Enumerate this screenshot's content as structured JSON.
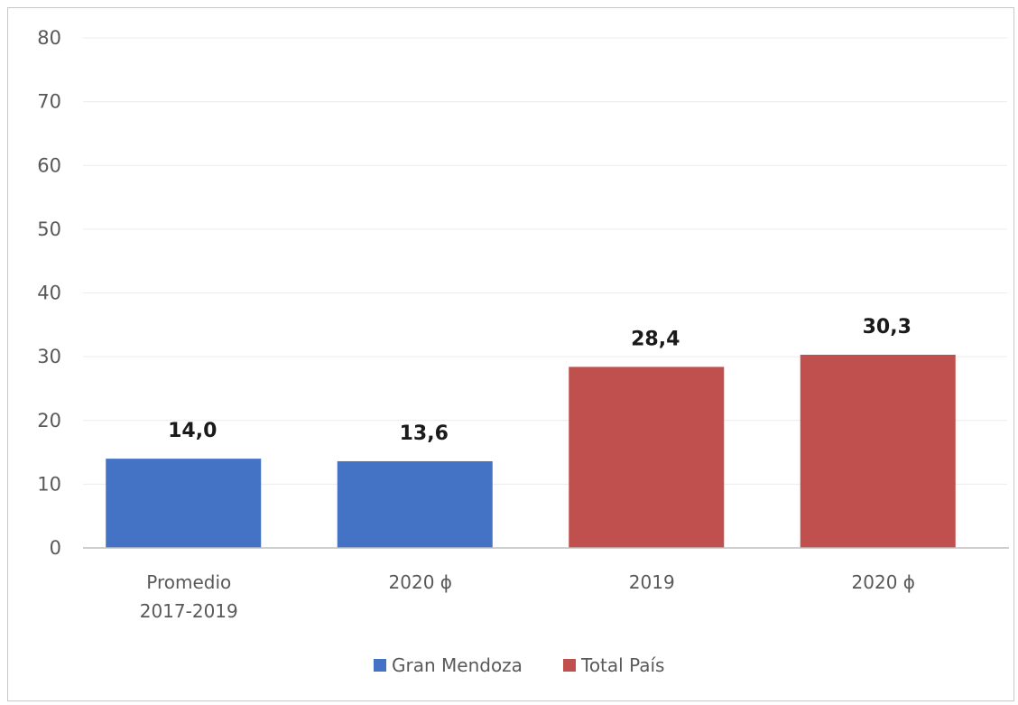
{
  "chart_data": {
    "type": "bar",
    "title": "",
    "xlabel": "",
    "ylabel": "",
    "ylim": [
      0,
      80
    ],
    "yticks": [
      0,
      10,
      20,
      30,
      40,
      50,
      60,
      70,
      80
    ],
    "grid": true,
    "legend_position": "bottom",
    "categories": [
      [
        "Promedio",
        "2017-2019"
      ],
      [
        "2020 ɸ"
      ],
      [
        "2019"
      ],
      [
        "2020 ɸ"
      ]
    ],
    "series": [
      {
        "name": "Gran Mendoza",
        "color": "#4472c4",
        "values": [
          14.0,
          13.6,
          null,
          null
        ]
      },
      {
        "name": "Total País",
        "color": "#c0504d",
        "values": [
          null,
          null,
          28.4,
          30.3
        ]
      }
    ],
    "data_labels": [
      "14,0",
      "13,6",
      "28,4",
      "30,3"
    ],
    "bars": [
      {
        "category_index": 0,
        "series_index": 0,
        "value": 14.0,
        "label": "14,0"
      },
      {
        "category_index": 1,
        "series_index": 0,
        "value": 13.6,
        "label": "13,6"
      },
      {
        "category_index": 2,
        "series_index": 1,
        "value": 28.4,
        "label": "28,4"
      },
      {
        "category_index": 3,
        "series_index": 1,
        "value": 30.3,
        "label": "30,3"
      }
    ]
  }
}
